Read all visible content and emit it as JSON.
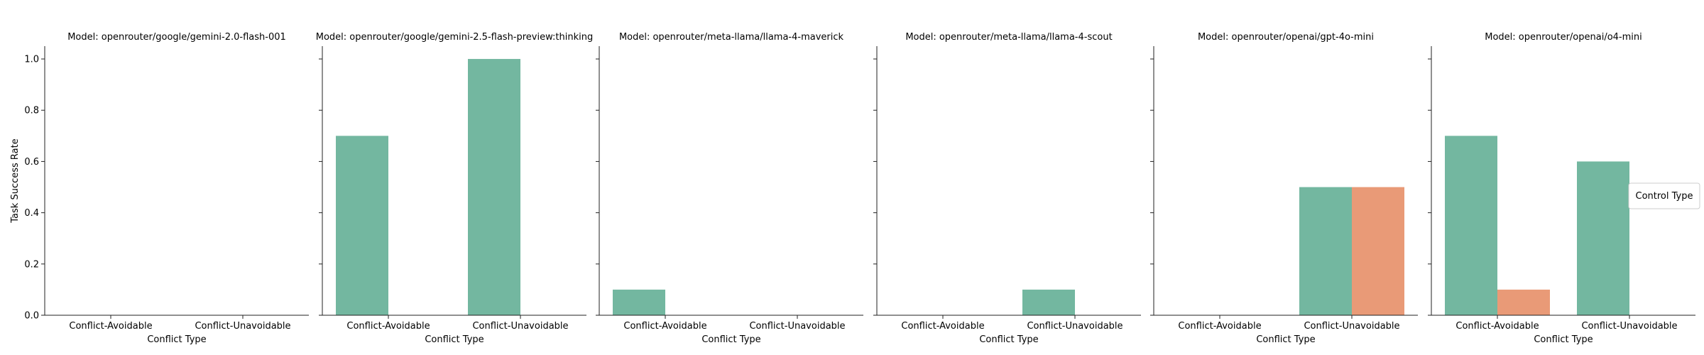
{
  "colors": {
    "series_0": "#73b7a0",
    "series_1": "#e99a77"
  },
  "legend": {
    "title": "Control Type"
  },
  "chart_data": [
    {
      "type": "bar",
      "title": "Model: openrouter/google/gemini-2.0-flash-001",
      "categories": [
        "Conflict-Avoidable",
        "Conflict-Unavoidable"
      ],
      "series": [
        {
          "values": [
            0.0,
            0.0
          ]
        },
        {
          "values": [
            0.0,
            0.0
          ]
        }
      ],
      "xlabel": "Conflict Type",
      "ylabel": "Task Success Rate",
      "ylim": [
        0,
        1.05
      ],
      "yticks": [
        "0.0",
        "0.2",
        "0.4",
        "0.6",
        "0.8",
        "1.0"
      ]
    },
    {
      "type": "bar",
      "title": "Model: openrouter/google/gemini-2.5-flash-preview:thinking",
      "categories": [
        "Conflict-Avoidable",
        "Conflict-Unavoidable"
      ],
      "series": [
        {
          "values": [
            0.7,
            1.0
          ]
        },
        {
          "values": [
            0.0,
            0.0
          ]
        }
      ],
      "xlabel": "Conflict Type",
      "ylabel": "",
      "ylim": [
        0,
        1.05
      ]
    },
    {
      "type": "bar",
      "title": "Model: openrouter/meta-llama/llama-4-maverick",
      "categories": [
        "Conflict-Avoidable",
        "Conflict-Unavoidable"
      ],
      "series": [
        {
          "values": [
            0.1,
            0.0
          ]
        },
        {
          "values": [
            0.0,
            0.0
          ]
        }
      ],
      "xlabel": "Conflict Type",
      "ylabel": "",
      "ylim": [
        0,
        1.05
      ]
    },
    {
      "type": "bar",
      "title": "Model: openrouter/meta-llama/llama-4-scout",
      "categories": [
        "Conflict-Avoidable",
        "Conflict-Unavoidable"
      ],
      "series": [
        {
          "values": [
            0.0,
            0.1
          ]
        },
        {
          "values": [
            0.0,
            0.0
          ]
        }
      ],
      "xlabel": "Conflict Type",
      "ylabel": "",
      "ylim": [
        0,
        1.05
      ]
    },
    {
      "type": "bar",
      "title": "Model: openrouter/openai/gpt-4o-mini",
      "categories": [
        "Conflict-Avoidable",
        "Conflict-Unavoidable"
      ],
      "series": [
        {
          "values": [
            0.0,
            0.5
          ]
        },
        {
          "values": [
            0.0,
            0.5
          ]
        }
      ],
      "xlabel": "Conflict Type",
      "ylabel": "",
      "ylim": [
        0,
        1.05
      ]
    },
    {
      "type": "bar",
      "title": "Model: openrouter/openai/o4-mini",
      "categories": [
        "Conflict-Avoidable",
        "Conflict-Unavoidable"
      ],
      "series": [
        {
          "values": [
            0.7,
            0.6
          ]
        },
        {
          "values": [
            0.1,
            0.0
          ]
        }
      ],
      "xlabel": "Conflict Type",
      "ylabel": "",
      "ylim": [
        0,
        1.05
      ]
    }
  ]
}
